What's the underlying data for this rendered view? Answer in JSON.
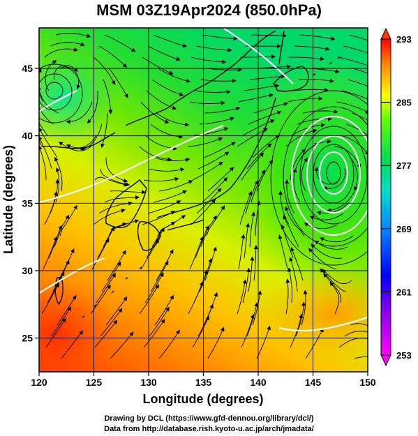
{
  "title": "MSM 03Z19Apr2024 (850.0hPa)",
  "xlabel": "Longitude (degrees)",
  "ylabel": "Latitude  (degrees)",
  "xticks": [
    "120",
    "125",
    "130",
    "135",
    "140",
    "145",
    "150"
  ],
  "yticks": [
    "25",
    "30",
    "35",
    "40",
    "45"
  ],
  "colorbar_ticks": [
    "293",
    "285",
    "277",
    "269",
    "261",
    "253"
  ],
  "footer_line1": "Drawing by DCL (https://www.gfd-dennou.org/library/dcl/)",
  "footer_line2": "Data from http://database.rish.kyoto-u.ac.jp/arch/jmadata/",
  "chart_data": {
    "type": "heatmap",
    "xlim": [
      120,
      150
    ],
    "ylim": [
      22.5,
      48
    ],
    "colorbar_range": [
      253,
      293
    ],
    "colormap": [
      "#ff00ff",
      "#0000ff",
      "#00ccff",
      "#00dd55",
      "#66ff00",
      "#ffff00",
      "#ff8800",
      "#ff0000"
    ],
    "lows": [
      [
        146.8,
        37.6
      ],
      [
        122.2,
        44.5
      ]
    ]
  }
}
